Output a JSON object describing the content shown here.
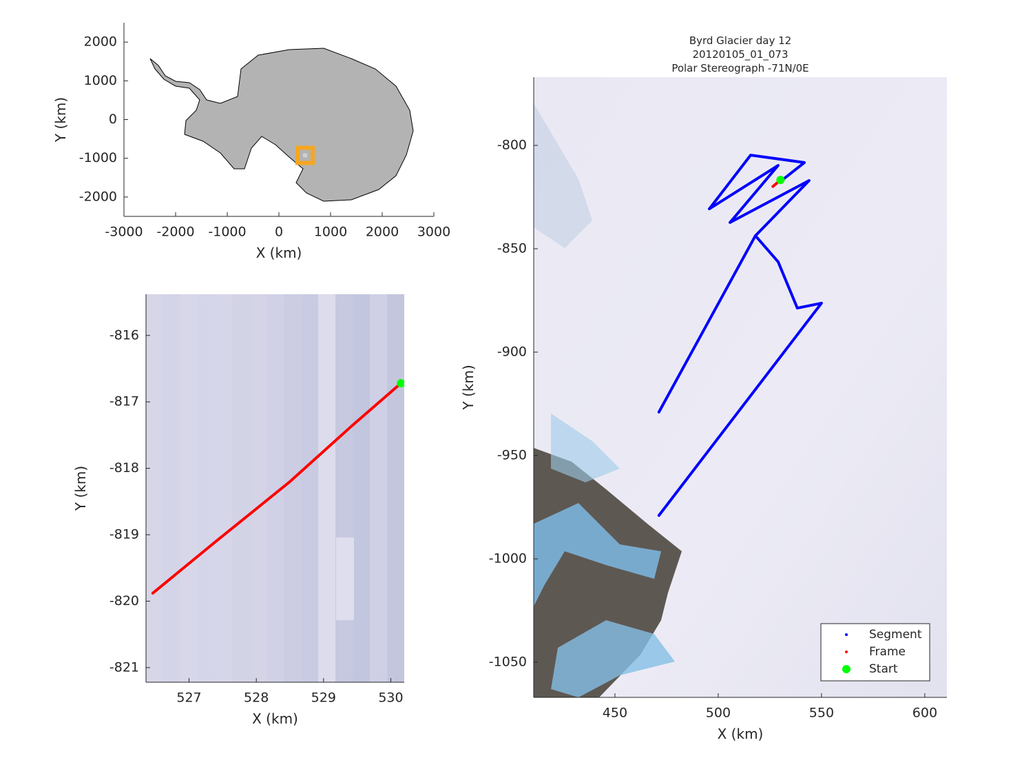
{
  "chart_data": [
    {
      "type": "map",
      "xlabel": "X (km)",
      "ylabel": "Y (km)",
      "xlim": [
        -3000,
        3000
      ],
      "ylim": [
        -2500,
        2500
      ],
      "xticks": [
        -3000,
        -2000,
        -1000,
        0,
        1000,
        2000,
        3000
      ],
      "yticks": [
        -2000,
        -1000,
        0,
        1000,
        2000
      ],
      "land_color": "#b3b3b3",
      "marker": {
        "x": 507,
        "y": -924,
        "color": "#f5a623"
      }
    },
    {
      "type": "line",
      "xlabel": "X (km)",
      "ylabel": "Y (km)",
      "xlim": [
        526.36,
        530.2
      ],
      "ylim": [
        -821.22,
        -815.38
      ],
      "xticks": [
        527,
        528,
        529,
        530
      ],
      "yticks": [
        -821,
        -820,
        -819,
        -818,
        -817,
        -816
      ],
      "series": [
        {
          "type": "line",
          "color": "#ff0000",
          "x": [
            526.46,
            527.4,
            528.5,
            529.4,
            530.15
          ],
          "y": [
            -819.88,
            -819.1,
            -818.2,
            -817.38,
            -816.72
          ]
        },
        {
          "type": "scatter",
          "color": "#00ff00",
          "x": [
            530.15
          ],
          "y": [
            -816.72
          ]
        }
      ]
    },
    {
      "type": "line",
      "title": [
        "Byrd Glacier day 12",
        "20120105_01_073",
        "Polar Stereograph -71N/0E"
      ],
      "xlabel": "X (km)",
      "ylabel": "Y (km)",
      "xlim": [
        410.7,
        610.7
      ],
      "ylim": [
        -1067,
        -767
      ],
      "xticks": [
        450,
        500,
        550,
        600
      ],
      "yticks": [
        -1050,
        -1000,
        -950,
        -900,
        -850,
        -800
      ],
      "legend": "lower right",
      "series": [
        {
          "name": "Segment",
          "type": "line",
          "color": "#0000ff",
          "x": [
            530.7,
            541.7,
            515.7,
            495.7,
            529,
            505.7,
            544,
            518,
            529,
            538.3,
            550,
            471.3,
            null,
            518,
            471.3
          ],
          "y": [
            -817,
            -808.3,
            -804.7,
            -830.7,
            -809.7,
            -837.3,
            -817,
            -843.7,
            -856.3,
            -878.7,
            -876.3,
            -979,
            null,
            -843.7,
            -929
          ]
        },
        {
          "name": "Frame",
          "type": "line",
          "color": "#ff0000",
          "x": [
            526.46,
            530.15
          ],
          "y": [
            -819.88,
            -816.72
          ]
        },
        {
          "name": "Start",
          "type": "scatter",
          "color": "#00ff00",
          "x": [
            530.15
          ],
          "y": [
            -816.72
          ]
        }
      ]
    }
  ]
}
